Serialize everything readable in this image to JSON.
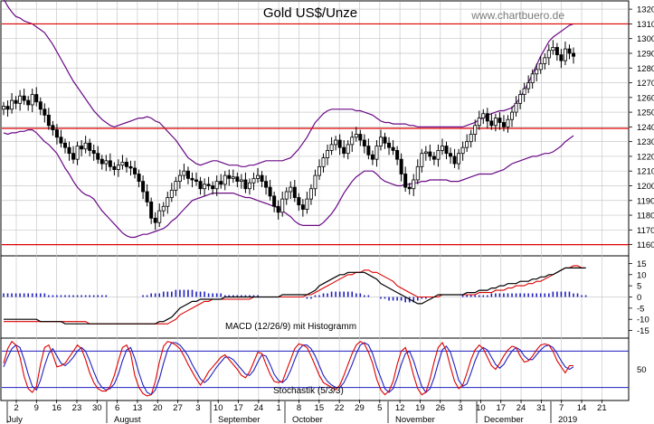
{
  "chart_data": {
    "title": "Gold US$/Unze",
    "watermark": "www.chartbuero.de",
    "colors": {
      "resistance_lines": "#dd0000",
      "bollinger": "#6a0a86",
      "macd_line": "#000000",
      "macd_signal": "#dd0000",
      "macd_histogram": "#1f1fbf",
      "stoch_k": "#dd0000",
      "stoch_d": "#1f1fbf",
      "stoch_levels": "#1f1fbf",
      "grid": "#c8c8c8"
    },
    "main": {
      "type": "candlestick",
      "y_ticks": [
        1160,
        1170,
        1180,
        1190,
        1200,
        1210,
        1220,
        1230,
        1240,
        1250,
        1260,
        1270,
        1280,
        1290,
        1300,
        1310,
        1320
      ],
      "ylim": [
        1153,
        1325
      ],
      "x_ticks": [
        "2",
        "9",
        "16",
        "23",
        "30",
        "6",
        "13",
        "20",
        "27",
        "3",
        "10",
        "17",
        "24",
        "1",
        "8",
        "15",
        "22",
        "29",
        "5",
        "12",
        "19",
        "26",
        "3",
        "10",
        "17",
        "24",
        "31",
        "7",
        "14",
        "21"
      ],
      "months": [
        "July",
        "August",
        "September",
        "October",
        "November",
        "December",
        "2019"
      ],
      "horizontal_levels": [
        1310,
        1239,
        1160
      ],
      "close": [
        1254,
        1252,
        1258,
        1256,
        1261,
        1258,
        1255,
        1262,
        1257,
        1252,
        1248,
        1241,
        1238,
        1233,
        1229,
        1226,
        1222,
        1218,
        1227,
        1225,
        1229,
        1224,
        1222,
        1218,
        1215,
        1217,
        1213,
        1211,
        1214,
        1216,
        1213,
        1212,
        1208,
        1203,
        1196,
        1189,
        1178,
        1175,
        1183,
        1186,
        1192,
        1197,
        1203,
        1207,
        1210,
        1205,
        1204,
        1203,
        1198,
        1201,
        1200,
        1198,
        1203,
        1201,
        1207,
        1205,
        1206,
        1203,
        1204,
        1198,
        1202,
        1205,
        1207,
        1203,
        1199,
        1193,
        1186,
        1182,
        1191,
        1196,
        1199,
        1192,
        1187,
        1184,
        1191,
        1198,
        1207,
        1213,
        1219,
        1224,
        1228,
        1231,
        1226,
        1222,
        1228,
        1233,
        1235,
        1231,
        1227,
        1221,
        1218,
        1227,
        1233,
        1229,
        1226,
        1224,
        1218,
        1208,
        1199,
        1198,
        1204,
        1213,
        1222,
        1223,
        1220,
        1218,
        1224,
        1227,
        1222,
        1220,
        1215,
        1222,
        1226,
        1230,
        1235,
        1241,
        1246,
        1249,
        1244,
        1241,
        1246,
        1243,
        1240,
        1245,
        1250,
        1256,
        1262,
        1266,
        1270,
        1276,
        1279,
        1283,
        1287,
        1292,
        1294,
        1289,
        1285,
        1293,
        1290,
        1288
      ],
      "bb_upper": [
        1327,
        1322,
        1318,
        1315,
        1314,
        1312,
        1311,
        1310,
        1308,
        1306,
        1304,
        1300,
        1296,
        1291,
        1286,
        1281,
        1276,
        1271,
        1267,
        1263,
        1259,
        1255,
        1251,
        1248,
        1245,
        1243,
        1241,
        1240,
        1241,
        1242,
        1243,
        1244,
        1245,
        1246,
        1246,
        1247,
        1246,
        1244,
        1243,
        1240,
        1237,
        1234,
        1231,
        1227,
        1223,
        1219,
        1217,
        1215,
        1214,
        1215,
        1216,
        1217,
        1217,
        1216,
        1215,
        1214,
        1214,
        1214,
        1213,
        1213,
        1214,
        1214,
        1215,
        1216,
        1217,
        1217,
        1217,
        1217,
        1217,
        1218,
        1219,
        1222,
        1225,
        1229,
        1233,
        1238,
        1243,
        1246,
        1249,
        1251,
        1252,
        1252,
        1252,
        1252,
        1252,
        1252,
        1251,
        1251,
        1250,
        1249,
        1248,
        1246,
        1244,
        1243,
        1243,
        1242,
        1242,
        1242,
        1242,
        1241,
        1241,
        1240,
        1240,
        1240,
        1240,
        1240,
        1240,
        1240,
        1240,
        1240,
        1240,
        1240,
        1240,
        1241,
        1242,
        1243,
        1245,
        1246,
        1248,
        1249,
        1250,
        1251,
        1251,
        1252,
        1253,
        1256,
        1260,
        1265,
        1270,
        1276,
        1282,
        1288,
        1293,
        1298,
        1301,
        1303,
        1305,
        1307,
        1309,
        1310
      ],
      "bb_lower": [
        1236,
        1235,
        1236,
        1236,
        1237,
        1237,
        1238,
        1238,
        1236,
        1233,
        1230,
        1228,
        1225,
        1222,
        1217,
        1212,
        1208,
        1203,
        1199,
        1196,
        1194,
        1193,
        1191,
        1187,
        1183,
        1180,
        1177,
        1174,
        1171,
        1168,
        1166,
        1165,
        1165,
        1166,
        1167,
        1167,
        1168,
        1169,
        1170,
        1171,
        1173,
        1176,
        1178,
        1181,
        1184,
        1187,
        1190,
        1191,
        1192,
        1193,
        1194,
        1195,
        1195,
        1195,
        1195,
        1195,
        1195,
        1194,
        1193,
        1192,
        1192,
        1191,
        1190,
        1189,
        1188,
        1187,
        1186,
        1185,
        1183,
        1181,
        1179,
        1176,
        1174,
        1173,
        1173,
        1173,
        1173,
        1173,
        1175,
        1178,
        1181,
        1185,
        1190,
        1195,
        1199,
        1203,
        1206,
        1208,
        1210,
        1210,
        1210,
        1208,
        1205,
        1203,
        1202,
        1201,
        1200,
        1200,
        1201,
        1201,
        1202,
        1202,
        1203,
        1203,
        1204,
        1204,
        1204,
        1204,
        1204,
        1203,
        1203,
        1203,
        1204,
        1205,
        1206,
        1207,
        1208,
        1208,
        1208,
        1208,
        1209,
        1210,
        1211,
        1213,
        1215,
        1216,
        1217,
        1218,
        1219,
        1220,
        1220,
        1221,
        1222,
        1222,
        1223,
        1225,
        1227,
        1230,
        1232,
        1234
      ]
    },
    "macd": {
      "label": "MACD (12/26/9) mit Histogramm",
      "y_ticks": [
        15,
        10,
        5,
        0,
        -5,
        -10,
        -15
      ],
      "ylim": [
        -18,
        18
      ],
      "macd": [
        -10,
        -10,
        -10,
        -10,
        -10,
        -10,
        -10,
        -10,
        -10,
        -11,
        -11,
        -11,
        -11,
        -11,
        -11,
        -12,
        -12,
        -12,
        -12,
        -12,
        -12,
        -12,
        -12,
        -12,
        -12,
        -12,
        -12,
        -12,
        -12,
        -12,
        -12,
        -12,
        -12,
        -12,
        -12,
        -12,
        -12,
        -12,
        -11,
        -11,
        -10,
        -9,
        -7,
        -5,
        -4,
        -3,
        -2,
        -2,
        -1,
        -1,
        -1,
        -1,
        -1,
        -1,
        0,
        0,
        0,
        0,
        0,
        0,
        0,
        0,
        0,
        0,
        0,
        0,
        0,
        0,
        1,
        1,
        1,
        1,
        1,
        1,
        1,
        2,
        3,
        5,
        6,
        7,
        8,
        9,
        10,
        10,
        11,
        11,
        11,
        11,
        11,
        10,
        9,
        8,
        6,
        5,
        4,
        3,
        2,
        1,
        0,
        -1,
        -2,
        -3,
        -3,
        -2,
        -1,
        0,
        1,
        1,
        1,
        1,
        1,
        1,
        1,
        2,
        2,
        2,
        3,
        3,
        3,
        4,
        4,
        5,
        5,
        6,
        6,
        6,
        7,
        7,
        7,
        8,
        8,
        9,
        9,
        10,
        10,
        11,
        12,
        13,
        13,
        13,
        13,
        13,
        13
      ],
      "signal": [
        -11,
        -11,
        -11,
        -11,
        -11,
        -11,
        -11,
        -11,
        -11,
        -11,
        -11,
        -11,
        -11,
        -11,
        -11,
        -11,
        -11,
        -11,
        -11,
        -11,
        -11,
        -12,
        -12,
        -12,
        -12,
        -12,
        -12,
        -12,
        -12,
        -12,
        -12,
        -12,
        -12,
        -12,
        -12,
        -12,
        -12,
        -12,
        -12,
        -12,
        -12,
        -11,
        -10,
        -8,
        -7,
        -6,
        -5,
        -4,
        -3,
        -2,
        -2,
        -1,
        -1,
        -1,
        -1,
        -1,
        -1,
        -1,
        -1,
        -1,
        -1,
        0,
        0,
        0,
        0,
        0,
        0,
        0,
        0,
        0,
        0,
        0,
        0,
        0,
        1,
        1,
        2,
        3,
        4,
        5,
        6,
        7,
        8,
        9,
        10,
        10,
        11,
        11,
        12,
        12,
        11,
        11,
        10,
        9,
        8,
        7,
        5,
        4,
        3,
        2,
        1,
        0,
        0,
        0,
        0,
        0,
        0,
        1,
        1,
        1,
        1,
        1,
        1,
        1,
        1,
        1,
        2,
        2,
        2,
        2,
        3,
        3,
        3,
        4,
        4,
        5,
        5,
        5,
        6,
        6,
        7,
        7,
        8,
        9,
        10,
        11,
        12,
        13,
        13,
        14,
        14,
        13,
        13
      ],
      "histogram": [
        2,
        2,
        2,
        2,
        2,
        2,
        2,
        2,
        2,
        2,
        2,
        1,
        1,
        1,
        1,
        1,
        1,
        1,
        1,
        1,
        1,
        1,
        1,
        1,
        1,
        1,
        0,
        0,
        0,
        0,
        0,
        0,
        0,
        0,
        1,
        1,
        2,
        2,
        2,
        3,
        3,
        3,
        4,
        4,
        4,
        4,
        4,
        3,
        3,
        3,
        2,
        2,
        2,
        2,
        1,
        1,
        1,
        1,
        1,
        1,
        1,
        1,
        1,
        0,
        0,
        0,
        0,
        0,
        0,
        0,
        0,
        0,
        0,
        0,
        -1,
        -1,
        1,
        1,
        2,
        2,
        3,
        3,
        3,
        3,
        3,
        3,
        2,
        2,
        1,
        1,
        0,
        0,
        -1,
        -1,
        -2,
        -2,
        -2,
        -2,
        -3,
        -3,
        -3,
        -2,
        -1,
        -1,
        0,
        0,
        0,
        0,
        0,
        0,
        0,
        0,
        1,
        1,
        1,
        1,
        1,
        1,
        1,
        2,
        2,
        2,
        2,
        2,
        2,
        2,
        2,
        2,
        2,
        2,
        2,
        2,
        2,
        2,
        3,
        3,
        3,
        3,
        3,
        2,
        2,
        1,
        1,
        0
      ]
    },
    "stochastic": {
      "label": "Stochastik (5/3/3)",
      "y_ticks": [
        50
      ],
      "ylim": [
        0,
        100
      ],
      "levels": [
        80,
        20
      ],
      "k": [
        60,
        84,
        96,
        90,
        70,
        38,
        18,
        12,
        22,
        58,
        86,
        90,
        74,
        54,
        56,
        60,
        70,
        80,
        90,
        84,
        66,
        44,
        28,
        18,
        14,
        14,
        22,
        40,
        64,
        86,
        90,
        76,
        40,
        20,
        10,
        6,
        8,
        30,
        62,
        88,
        96,
        94,
        90,
        84,
        72,
        58,
        46,
        34,
        24,
        34,
        46,
        54,
        62,
        70,
        74,
        66,
        58,
        50,
        40,
        36,
        46,
        62,
        78,
        76,
        58,
        42,
        30,
        28,
        30,
        48,
        66,
        84,
        92,
        90,
        86,
        72,
        56,
        40,
        28,
        24,
        20,
        16,
        24,
        40,
        58,
        76,
        90,
        96,
        92,
        78,
        60,
        34,
        16,
        8,
        14,
        30,
        58,
        80,
        86,
        66,
        40,
        18,
        8,
        12,
        34,
        62,
        86,
        94,
        80,
        54,
        30,
        18,
        24,
        44,
        66,
        82,
        90,
        84,
        70,
        56,
        50,
        60,
        72,
        82,
        88,
        86,
        72,
        62,
        64,
        72,
        82,
        90,
        92,
        90,
        80,
        64,
        54,
        44,
        56,
        56
      ],
      "d": [
        54,
        70,
        84,
        90,
        86,
        66,
        42,
        22,
        16,
        32,
        56,
        76,
        84,
        72,
        60,
        56,
        62,
        70,
        80,
        86,
        80,
        64,
        46,
        30,
        20,
        16,
        18,
        26,
        42,
        64,
        82,
        86,
        68,
        44,
        24,
        12,
        8,
        16,
        34,
        60,
        82,
        94,
        94,
        90,
        82,
        72,
        58,
        46,
        34,
        28,
        34,
        44,
        54,
        62,
        70,
        70,
        66,
        58,
        50,
        42,
        40,
        48,
        62,
        74,
        72,
        58,
        42,
        32,
        28,
        34,
        48,
        66,
        82,
        90,
        90,
        84,
        72,
        56,
        40,
        30,
        24,
        20,
        20,
        28,
        42,
        58,
        76,
        90,
        94,
        90,
        76,
        54,
        36,
        18,
        12,
        18,
        36,
        58,
        76,
        80,
        64,
        42,
        22,
        12,
        18,
        36,
        60,
        82,
        88,
        78,
        56,
        32,
        22,
        26,
        44,
        64,
        80,
        86,
        82,
        70,
        58,
        52,
        58,
        70,
        80,
        86,
        82,
        72,
        66,
        66,
        74,
        82,
        88,
        90,
        86,
        76,
        64,
        54,
        50,
        54
      ]
    }
  }
}
